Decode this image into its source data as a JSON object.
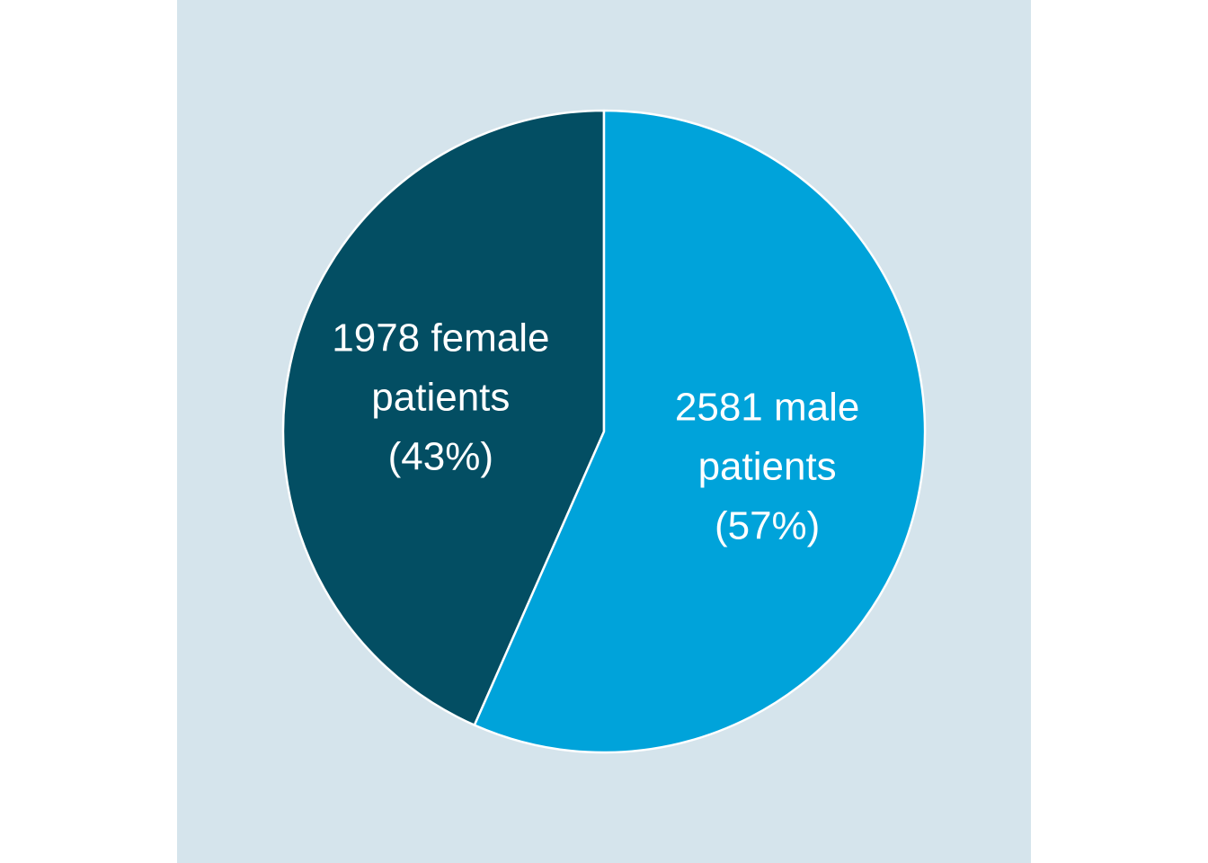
{
  "chart_data": {
    "type": "pie",
    "title": "",
    "start": "12 o'clock",
    "direction": "counter-clockwise",
    "colors": {
      "panel_background": "#d5e4ec",
      "slice_border": "#ffffff"
    },
    "slices": [
      {
        "category": "female",
        "count": 1978,
        "percent": 43,
        "color": "#034e63",
        "label_lines": [
          "1978 female",
          "patients",
          "(43%)"
        ]
      },
      {
        "category": "male",
        "count": 2581,
        "percent": 57,
        "color": "#00a3da",
        "label_lines": [
          "2581 male",
          "patients",
          "(57%)"
        ]
      }
    ]
  }
}
